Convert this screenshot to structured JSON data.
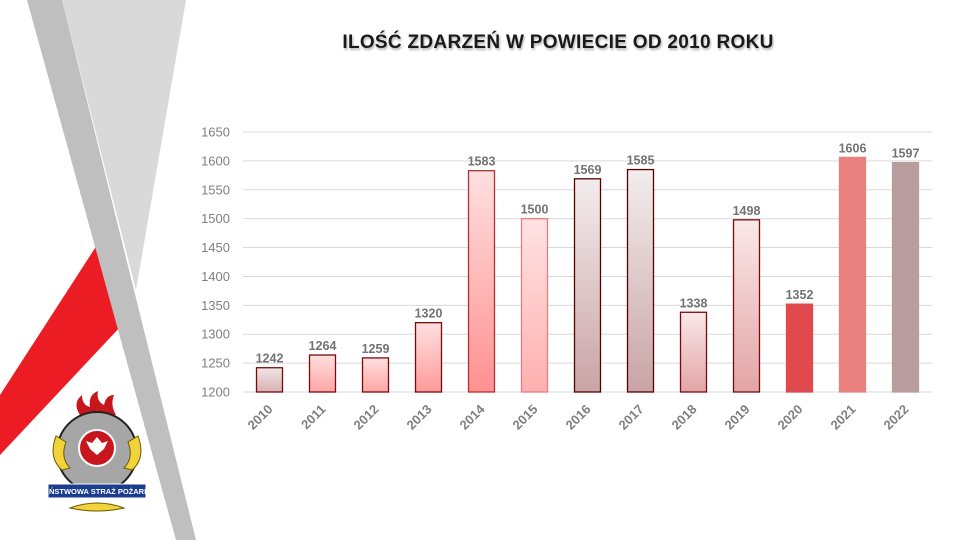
{
  "chart_data": {
    "type": "bar",
    "title": "ILOŚĆ ZDARZEŃ W POWIECIE OD 2010 ROKU",
    "xlabel": "",
    "ylabel": "",
    "categories": [
      "2010",
      "2011",
      "2012",
      "2013",
      "2014",
      "2015",
      "2016",
      "2017",
      "2018",
      "2019",
      "2020",
      "2021",
      "2022"
    ],
    "values": [
      1242,
      1264,
      1259,
      1320,
      1583,
      1500,
      1569,
      1585,
      1338,
      1498,
      1352,
      1606,
      1597
    ],
    "ylim": [
      1200,
      1650
    ],
    "yticks": [
      1200,
      1250,
      1300,
      1350,
      1400,
      1450,
      1500,
      1550,
      1600,
      1650
    ],
    "grid": true,
    "data_labels": true,
    "bar_colors": [
      {
        "top": "#f0e6e6",
        "bottom": "#d9b0b2",
        "border": "#7a0a0a"
      },
      {
        "top": "#ffe0e0",
        "bottom": "#ffa5a5",
        "border": "#7a0a0a"
      },
      {
        "top": "#ffe0e0",
        "bottom": "#ffa5a5",
        "border": "#7a0a0a"
      },
      {
        "top": "#ffe0e0",
        "bottom": "#ff9a9a",
        "border": "#7a0a0a"
      },
      {
        "top": "#ffe0e0",
        "bottom": "#ff9090",
        "border": "#b03030"
      },
      {
        "top": "#ffe2e2",
        "bottom": "#ffb0b0",
        "border": "#e08080"
      },
      {
        "top": "#f3eded",
        "bottom": "#c9a4a6",
        "border": "#5a0000"
      },
      {
        "top": "#f3eded",
        "bottom": "#c9a4a6",
        "border": "#5a0000"
      },
      {
        "top": "#fae8e8",
        "bottom": "#e3a4a6",
        "border": "#7a0a0a"
      },
      {
        "top": "#fae8e8",
        "bottom": "#e3a4a6",
        "border": "#7a0a0a"
      },
      {
        "top": "#e04a4f",
        "bottom": "#e04a4f",
        "border": "#e04a4f"
      },
      {
        "top": "#e98080",
        "bottom": "#e98080",
        "border": "#e98080"
      },
      {
        "top": "#b99d9e",
        "bottom": "#b99d9e",
        "border": "#b99d9e"
      }
    ]
  },
  "logo": {
    "text": "PAŃSTWOWA STRAŻ POŻARNA"
  }
}
